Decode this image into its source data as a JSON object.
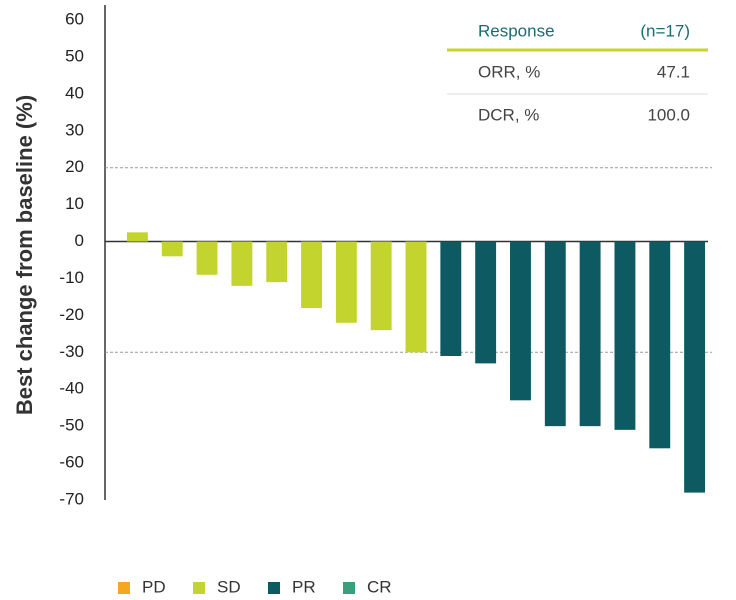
{
  "chart_data": {
    "type": "bar",
    "y_label": "Best change from baseline (%)",
    "categories": [
      null,
      null,
      null,
      null,
      null,
      null,
      null,
      null,
      null,
      null,
      null,
      null,
      null,
      null,
      null,
      null,
      null
    ],
    "series": [
      {
        "name": "PD",
        "color": "#f5a623",
        "values": [
          null,
          null,
          null,
          null,
          null,
          null,
          null,
          null,
          null,
          null,
          null,
          null,
          null,
          null,
          null,
          null,
          null
        ]
      },
      {
        "name": "SD",
        "color": "#c3d42f",
        "values": [
          2.5,
          -4,
          -9,
          -12,
          -11,
          -18,
          -22,
          -24,
          -30,
          null,
          null,
          null,
          null,
          null,
          null,
          null,
          null
        ]
      },
      {
        "name": "PR",
        "color": "#0d5a62",
        "values": [
          null,
          null,
          null,
          null,
          null,
          null,
          null,
          null,
          null,
          -31,
          -33,
          -43,
          -50,
          -50,
          -51,
          -56,
          -68
        ]
      },
      {
        "name": "CR",
        "color": "#3a9f7c",
        "values": [
          null,
          null,
          null,
          null,
          null,
          null,
          null,
          null,
          null,
          null,
          null,
          null,
          null,
          null,
          null,
          null,
          null
        ]
      }
    ],
    "ylim": [
      -70,
      60
    ],
    "yticks": [
      60,
      50,
      40,
      30,
      20,
      10,
      0,
      -10,
      -20,
      -30,
      -40,
      -50,
      -60,
      -70
    ],
    "reference_lines": [
      20,
      -30
    ],
    "grid": false,
    "legend": "bottom"
  },
  "table": {
    "header": [
      "Response",
      "(n=17)"
    ],
    "rows": [
      [
        "ORR, %",
        "47.1"
      ],
      [
        "DCR, %",
        "100.0"
      ]
    ]
  }
}
